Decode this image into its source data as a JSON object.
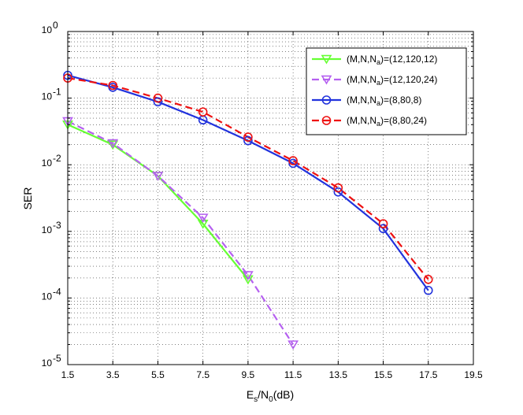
{
  "chart_data": {
    "type": "line",
    "title": "",
    "xlabel": "E_s/N_0(dB)",
    "xlabel_parts": {
      "E": "E",
      "s": "s",
      "slash": "/N",
      "zero": "0",
      "unit": "(dB)"
    },
    "ylabel": "SER",
    "xlim": [
      1.5,
      19.5
    ],
    "ylim": [
      1e-05,
      1
    ],
    "yscale": "log",
    "grid": true,
    "legend_position": "top-right",
    "x_ticks": [
      "1.5",
      "3.5",
      "5.5",
      "7.5",
      "9.5",
      "11.5",
      "13.5",
      "15.5",
      "17.5",
      "19.5"
    ],
    "y_ticks": [
      {
        "mantissa": "10",
        "exponent": "-5",
        "value": 1e-05
      },
      {
        "mantissa": "10",
        "exponent": "-4",
        "value": 0.0001
      },
      {
        "mantissa": "10",
        "exponent": "-3",
        "value": 0.001
      },
      {
        "mantissa": "10",
        "exponent": "-2",
        "value": 0.01
      },
      {
        "mantissa": "10",
        "exponent": "-1",
        "value": 0.1
      },
      {
        "mantissa": "10",
        "exponent": "0",
        "value": 1
      }
    ],
    "series": [
      {
        "name": "(M,N,N_a)=(12,120,12)",
        "label_prefix": "(M,N,N",
        "label_sub": "a",
        "label_suffix": ")=(12,120,12)",
        "color": "#66ff33",
        "dash": "solid",
        "marker": "triangle-down",
        "x": [
          1.5,
          3.5,
          5.5,
          7.5,
          9.5
        ],
        "y": [
          0.04,
          0.02,
          0.0068,
          0.0013,
          0.00019
        ]
      },
      {
        "name": "(M,N,N_a)=(12,120,24)",
        "label_prefix": "(M,N,N",
        "label_sub": "a",
        "label_suffix": ")=(12,120,24)",
        "color": "#b560f0",
        "dash": "dashed",
        "marker": "triangle-down",
        "x": [
          1.5,
          3.5,
          5.5,
          7.5,
          9.5,
          11.5
        ],
        "y": [
          0.045,
          0.021,
          0.0068,
          0.0016,
          0.00022,
          2e-05
        ]
      },
      {
        "name": "(M,N,N_a)=(8,80,8)",
        "label_prefix": "(M,N,N",
        "label_sub": "a",
        "label_suffix": ")=(8,80,8)",
        "color": "#2233dd",
        "dash": "solid",
        "marker": "circle",
        "x": [
          1.5,
          3.5,
          5.5,
          7.5,
          9.5,
          11.5,
          13.5,
          15.5,
          17.5
        ],
        "y": [
          0.22,
          0.145,
          0.088,
          0.047,
          0.023,
          0.0105,
          0.0039,
          0.0011,
          0.00013
        ]
      },
      {
        "name": "(M,N,N_a)=(8,80,24)",
        "label_prefix": "(M,N,N",
        "label_sub": "a",
        "label_suffix": ")=(8,80,24)",
        "color": "#ee1111",
        "dash": "dashed",
        "marker": "circle",
        "x": [
          1.5,
          3.5,
          5.5,
          7.5,
          9.5,
          11.5,
          13.5,
          15.5,
          17.5
        ],
        "y": [
          0.2,
          0.155,
          0.1,
          0.062,
          0.026,
          0.0115,
          0.0045,
          0.0013,
          0.00019
        ]
      }
    ]
  }
}
